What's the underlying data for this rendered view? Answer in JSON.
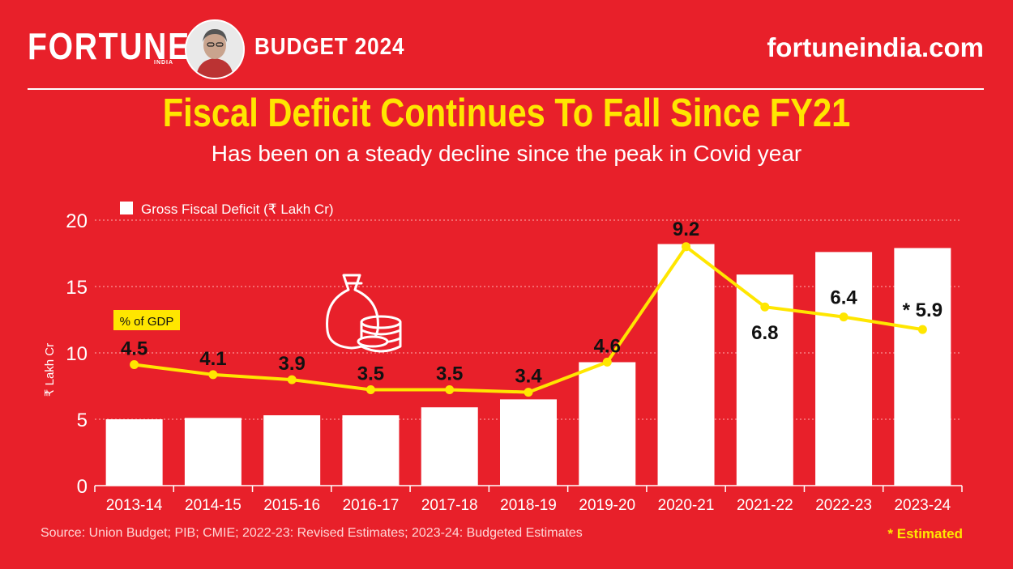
{
  "header": {
    "brand": "FORTUNE",
    "brand_sub": "INDIA",
    "budget_label": "BUDGET 2024",
    "site": "fortuneindia.com"
  },
  "colors": {
    "background": "#e8202a",
    "accent": "#ffe600",
    "bar": "#ffffff"
  },
  "icons": [
    "money-bag-coins-icon",
    "person-portrait"
  ],
  "chart_data": {
    "type": "bar",
    "title": "Fiscal Deficit Continues To Fall Since FY21",
    "subtitle": "Has been on a steady decline since the peak in Covid year",
    "categories": [
      "2013-14",
      "2014-15",
      "2015-16",
      "2016-17",
      "2017-18",
      "2018-19",
      "2019-20",
      "2020-21",
      "2021-22",
      "2022-23",
      "2023-24"
    ],
    "series": [
      {
        "name": "Gross Fiscal Deficit (₹ Lakh Cr)",
        "type": "bar",
        "values": [
          5.0,
          5.1,
          5.3,
          5.3,
          5.9,
          6.5,
          9.3,
          18.2,
          15.9,
          17.6,
          17.9
        ]
      },
      {
        "name": "% of GDP",
        "type": "line",
        "values": [
          4.5,
          4.1,
          3.9,
          3.5,
          3.5,
          3.4,
          4.6,
          9.2,
          6.8,
          6.4,
          5.9
        ],
        "labels": [
          "4.5",
          "4.1",
          "3.9",
          "3.5",
          "3.5",
          "3.4",
          "4.6",
          "9.2",
          "6.8",
          "6.4",
          "* 5.9"
        ]
      }
    ],
    "ylabel": "₹ Lakh Cr",
    "ylim": [
      0,
      20
    ],
    "yticks": [
      0,
      5,
      10,
      15,
      20
    ],
    "grid": true,
    "legend": "top-left"
  },
  "footer": {
    "source": "Source: Union Budget; PIB; CMIE; 2022-23: Revised Estimates; 2023-24: Budgeted Estimates",
    "note": "* Estimated"
  }
}
